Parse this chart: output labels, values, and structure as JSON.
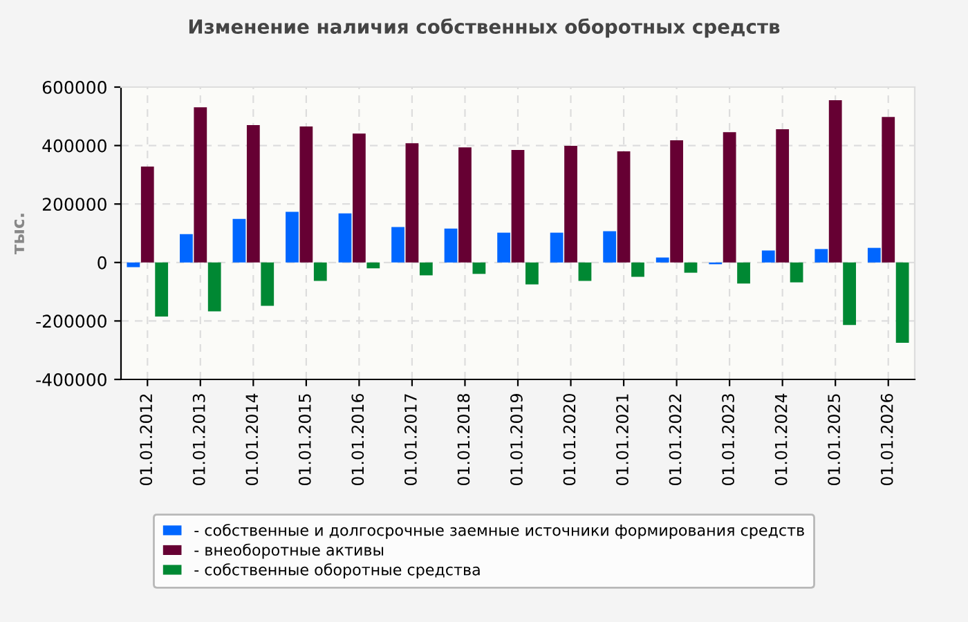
{
  "chart_data": {
    "type": "bar",
    "title": "Изменение наличия собственных оборотных средств",
    "ylabel": "тыс.",
    "categories": [
      "01.01.2012",
      "01.01.2013",
      "01.01.2014",
      "01.01.2015",
      "01.01.2016",
      "01.01.2017",
      "01.01.2018",
      "01.01.2019",
      "01.01.2020",
      "01.01.2021",
      "01.01.2022",
      "01.01.2023",
      "01.01.2024",
      "01.01.2025",
      "01.01.2026"
    ],
    "series": [
      {
        "name": "- собственные и долгосрочные заемные источники формирования средств",
        "color": "#0066ff",
        "values": [
          -16000,
          97000,
          149000,
          173000,
          168000,
          121000,
          116000,
          102000,
          102000,
          107000,
          17000,
          -6000,
          41000,
          46000,
          50000
        ]
      },
      {
        "name": "- внеоборотные активы",
        "color": "#660033",
        "values": [
          328000,
          531000,
          470000,
          465000,
          441000,
          408000,
          394000,
          385000,
          399000,
          380000,
          418000,
          446000,
          456000,
          555000,
          498000
        ]
      },
      {
        "name": "- собственные оборотные средства",
        "color": "#008833",
        "values": [
          -185000,
          -167000,
          -148000,
          -63000,
          -20000,
          -44000,
          -39000,
          -75000,
          -63000,
          -49000,
          -35000,
          -72000,
          -68000,
          -214000,
          -275000
        ]
      }
    ],
    "ylim": [
      -400000,
      600000
    ],
    "yticks": [
      -400000,
      -200000,
      0,
      200000,
      400000,
      600000
    ],
    "grid": true,
    "legend": "bottom"
  }
}
